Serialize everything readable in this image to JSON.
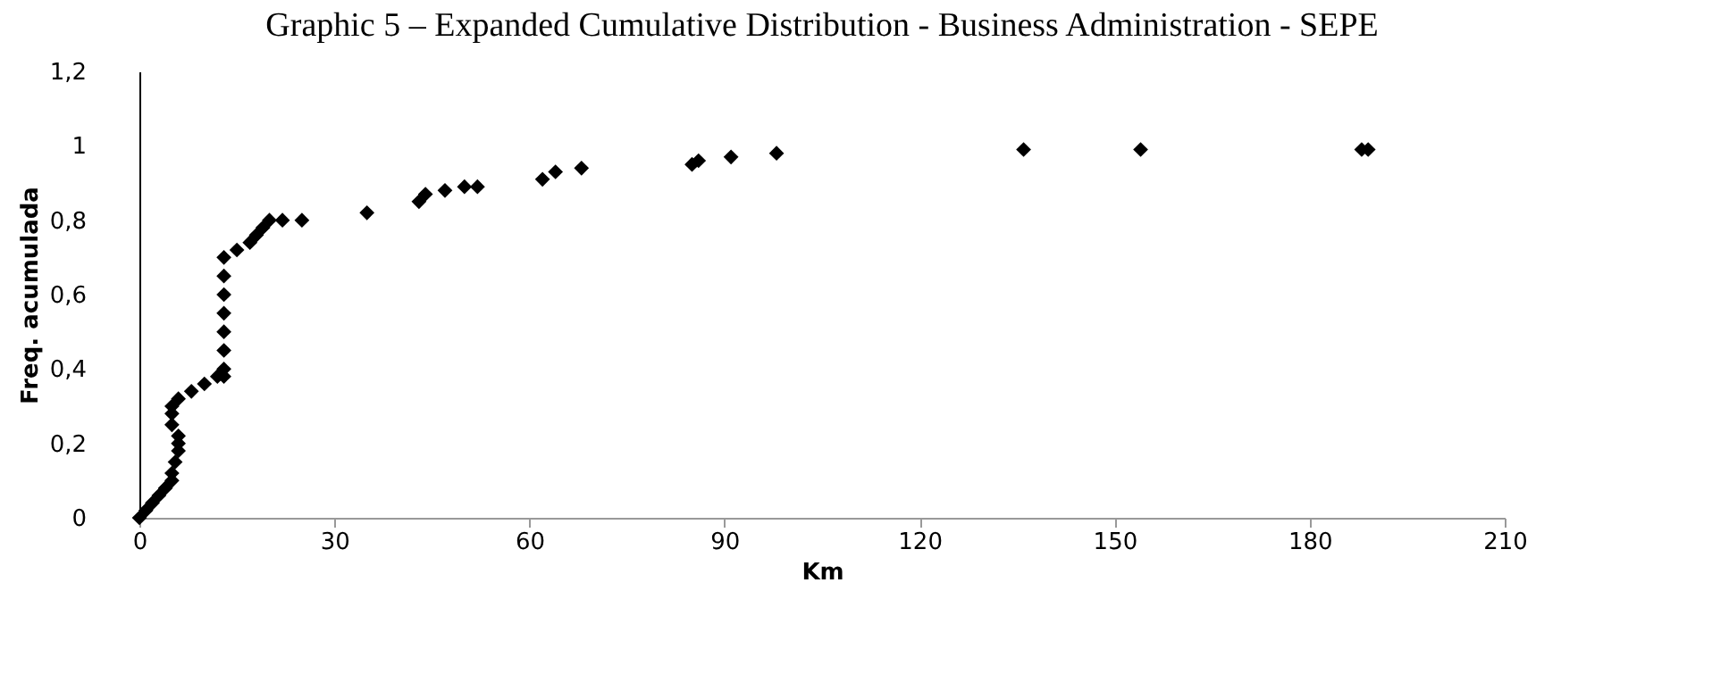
{
  "chart_data": {
    "type": "scatter",
    "title": "Graphic 5 – Expanded Cumulative Distribution - Business Administration - SEPE",
    "xlabel": "Km",
    "ylabel": "Freq. acumulada",
    "marker": "diamond",
    "grid": false,
    "xlim": [
      0,
      210
    ],
    "xticks": [
      0,
      30,
      60,
      90,
      120,
      150,
      180,
      210
    ],
    "ylim": [
      0,
      1.2
    ],
    "yticks": [
      0,
      {
        "value": 0.2,
        "label": "0,2"
      },
      {
        "value": 0.4,
        "label": "0,4"
      },
      {
        "value": 0.6,
        "label": "0,6"
      },
      {
        "value": 0.8,
        "label": "0,8"
      },
      1,
      {
        "value": 1.2,
        "label": "1,2"
      }
    ],
    "series": [
      {
        "color": "#000000",
        "x": [
          0,
          1,
          2,
          3,
          4,
          5,
          5,
          5.5,
          6,
          6,
          6,
          5,
          5,
          5,
          6,
          8,
          10,
          12,
          13,
          13,
          13,
          13,
          13,
          13,
          13,
          13,
          15,
          17,
          18,
          19,
          20,
          22,
          25,
          35,
          43,
          44,
          47,
          50,
          52,
          62,
          64,
          68,
          85,
          86,
          91,
          98,
          136,
          154,
          188,
          189
        ],
        "values": [
          0,
          0.02,
          0.04,
          0.06,
          0.08,
          0.1,
          0.12,
          0.15,
          0.18,
          0.2,
          0.22,
          0.25,
          0.28,
          0.3,
          0.32,
          0.34,
          0.36,
          0.38,
          0.38,
          0.4,
          0.45,
          0.5,
          0.55,
          0.6,
          0.65,
          0.7,
          0.72,
          0.74,
          0.76,
          0.78,
          0.8,
          0.8,
          0.8,
          0.82,
          0.85,
          0.87,
          0.88,
          0.89,
          0.89,
          0.91,
          0.93,
          0.94,
          0.95,
          0.96,
          0.97,
          0.98,
          0.99,
          0.99,
          0.99,
          0.99
        ]
      }
    ]
  }
}
